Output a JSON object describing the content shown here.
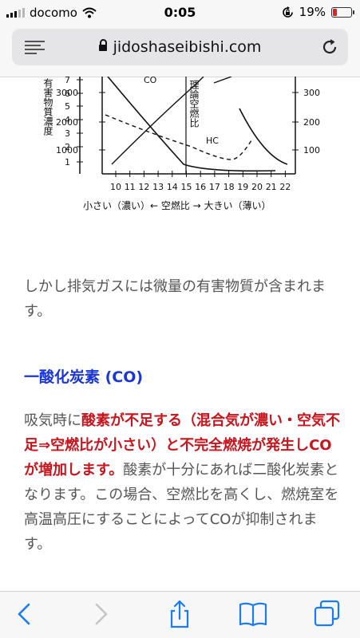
{
  "status_bar": {
    "carrier": "docomo",
    "time": "0:05",
    "battery": "19%"
  },
  "browser": {
    "url": "jidoshaseibishi.com"
  },
  "figure": {
    "left_axis_label": "有害物質濃度",
    "left_ticks_small": [
      "7",
      "6",
      "5",
      "4",
      "3",
      "2",
      "1"
    ],
    "left_ticks_large": [
      "3000",
      "2000",
      "1000"
    ],
    "right_ticks": [
      "300",
      "200",
      "100"
    ],
    "x_ticks": [
      "10",
      "11",
      "12",
      "13",
      "14",
      "15",
      "16",
      "17",
      "18",
      "19",
      "20",
      "21",
      "22"
    ],
    "x_axis_caption": "小さい（濃い）← 空燃比 → 大きい（薄い）",
    "curve_labels": {
      "co": "CO",
      "hc": "HC"
    },
    "stoich_label": "理論空燃比"
  },
  "article": {
    "paragraph1": "しかし排気ガスには微量の有害物質が含まれます。",
    "heading": "一酸化炭素 (CO)",
    "p2_part1": "吸気時に",
    "p2_red": "酸素が不足する（混合気が濃い・空気不足⇒空燃比が小さい）と不完全燃焼が発生しCOが増加します。",
    "p2_part2": "酸素が十分にあれば二酸化炭素となります。この場合、空燃比を高くし、燃焼室を高温高圧にすることによってCOが抑制されます。"
  },
  "colors": {
    "heading": "#1a36d6",
    "highlight": "#c8141c",
    "body_text": "#555555"
  }
}
